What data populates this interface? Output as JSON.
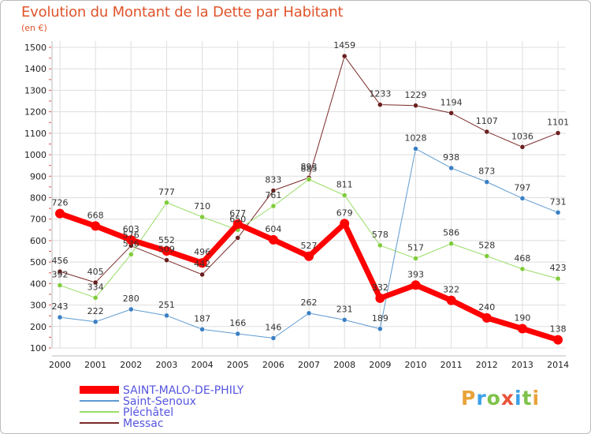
{
  "header": {
    "title": "Evolution du Montant de la Dette par Habitant",
    "subtitle": "(en €)"
  },
  "logo": {
    "text": "Proxiti",
    "colors": [
      "#e8a33a",
      "#3aa0e8",
      "#7fc24a",
      "#e8533a",
      "#3aa0e8",
      "#7fc24a",
      "#e8a33a"
    ]
  },
  "chart_data": {
    "type": "line",
    "x": [
      2000,
      2001,
      2002,
      2003,
      2004,
      2005,
      2006,
      2007,
      2008,
      2009,
      2010,
      2011,
      2012,
      2013,
      2014
    ],
    "x_tick_labels": [
      "2000",
      "2001",
      "2002",
      "2003",
      "2004",
      "2005",
      "2006",
      "2007",
      "2008",
      "2009",
      "2010",
      "2011",
      "2012",
      "2013",
      "2014"
    ],
    "y_ticks": [
      100,
      200,
      300,
      400,
      500,
      600,
      700,
      800,
      900,
      1000,
      1100,
      1200,
      1300,
      1400,
      1500
    ],
    "y_tick_labels": [
      "100",
      "200",
      "300",
      "400",
      "500",
      "600",
      "700",
      "800",
      "900",
      "1000",
      "1100",
      "1200",
      "1300",
      "1400",
      "1500"
    ],
    "ylim": [
      100,
      1500
    ],
    "grid": true,
    "legend_position": "bottom-left",
    "series": [
      {
        "name": "Messac",
        "color": "#7a2a2a",
        "marker": "#6b1f1f",
        "width": 1,
        "values": [
          456,
          405,
          576,
          509,
          442,
          613,
          833,
          893,
          1459,
          1233,
          1229,
          1194,
          1107,
          1036,
          1101
        ],
        "labels": [
          "456",
          "405",
          "576",
          "509",
          "442",
          "",
          "833",
          "893",
          "1459",
          "1233",
          "1229",
          "1194",
          "1107",
          "1036",
          "1101"
        ]
      },
      {
        "name": "Pléchâtel",
        "color": "#99dd66",
        "marker": "#7fcc3a",
        "width": 1,
        "values": [
          392,
          334,
          536,
          777,
          710,
          650,
          761,
          885,
          811,
          578,
          517,
          586,
          528,
          468,
          423
        ],
        "labels": [
          "392",
          "334",
          "536",
          "777",
          "710",
          "650",
          "761",
          "885",
          "811",
          "578",
          "517",
          "586",
          "528",
          "468",
          "423"
        ]
      },
      {
        "name": "Saint-Senoux",
        "color": "#5e9bd1",
        "marker": "#3a7fc4",
        "width": 1,
        "values": [
          243,
          222,
          280,
          251,
          187,
          166,
          146,
          262,
          231,
          189,
          1028,
          938,
          873,
          797,
          731
        ],
        "labels": [
          "243",
          "222",
          "280",
          "251",
          "187",
          "166",
          "146",
          "262",
          "231",
          "189",
          "1028",
          "938",
          "873",
          "797",
          "731"
        ]
      },
      {
        "name": "SAINT-MALO-DE-PHILY",
        "color": "#ff0000",
        "marker": "#ff0000",
        "width": 7,
        "values": [
          726,
          668,
          603,
          552,
          496,
          677,
          604,
          527,
          679,
          332,
          393,
          322,
          240,
          190,
          138
        ],
        "labels": [
          "726",
          "668",
          "603",
          "552",
          "496",
          "677",
          "604",
          "527",
          "679",
          "332",
          "393",
          "322",
          "240",
          "190",
          "138"
        ]
      }
    ],
    "legend": [
      "SAINT-MALO-DE-PHILY",
      "Saint-Senoux",
      "Pléchâtel",
      "Messac"
    ]
  }
}
